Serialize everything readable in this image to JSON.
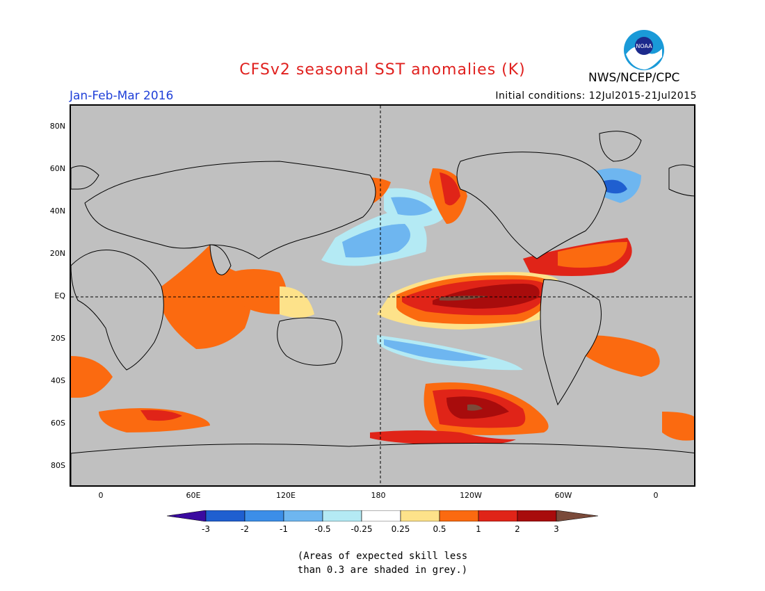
{
  "title": "CFSv2 seasonal SST anomalies (K)",
  "period": "Jan-Feb-Mar 2016",
  "initial_conditions": "Initial conditions: 12Jul2015-21Jul2015",
  "agency": "NWS/NCEP/CPC",
  "logo_text": "NOAA",
  "lat_labels": [
    "80N",
    "60N",
    "40N",
    "20N",
    "EQ",
    "20S",
    "40S",
    "60S",
    "80S"
  ],
  "lon_labels": [
    "0",
    "60E",
    "120E",
    "180",
    "120W",
    "60W",
    "0"
  ],
  "colorbar": {
    "ticks": [
      "-3",
      "-2",
      "-1",
      "-0.5",
      "-0.25",
      "0.25",
      "0.5",
      "1",
      "2",
      "3"
    ],
    "colors": [
      "#3a0aa0",
      "#1f5fd0",
      "#3c8ee8",
      "#6eb6f0",
      "#b4eaf4",
      "#ffffff",
      "#fde28a",
      "#fb6a10",
      "#e02418",
      "#a80c0c",
      "#7a4a3a"
    ]
  },
  "footnote_line1": "(Areas of expected skill less",
  "footnote_line2": "than 0.3 are shaded in grey.)",
  "map_colors": {
    "land": "#c0c0c0",
    "coast": "#000000"
  }
}
